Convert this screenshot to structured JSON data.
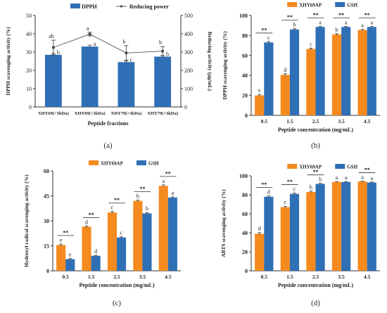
{
  "chart_data": [
    {
      "type": "bar",
      "panel_label": "(a)",
      "xlabel": "Peptide fractions",
      "ylabel": "DPPH scavenging activity (%)",
      "y2label": "Reducing activity (μg/mL)",
      "ylim": [
        0,
        50
      ],
      "yticks": [
        0,
        10,
        20,
        30,
        40,
        50
      ],
      "y2lim": [
        0,
        500
      ],
      "y2ticks": [
        0,
        100,
        200,
        300,
        400,
        500
      ],
      "categories": [
        "XHY69(>3kDa)",
        "XHY69(<3kDa)",
        "XHY79(>3kDa)",
        "XHY79(<3kDa)"
      ],
      "legend_placement": "top",
      "colors": {
        "bar": "#2f6fb5",
        "line": "#555555"
      },
      "series": [
        {
          "name": "DPPH",
          "kind": "bar",
          "values": [
            28.5,
            33,
            24.5,
            27.5
          ],
          "errors": [
            0.8,
            0.8,
            0.6,
            0.6
          ],
          "letters": [
            "b",
            "a",
            "c",
            "b"
          ]
        },
        {
          "name": "Reducing power",
          "kind": "line",
          "axis": "right",
          "values": [
            325,
            398,
            295,
            305
          ],
          "errors": [
            40,
            10,
            40,
            25
          ],
          "letters": [
            "ab",
            "a",
            "b",
            "b"
          ]
        }
      ]
    },
    {
      "type": "bar",
      "panel_label": "(b)",
      "xlabel": "Peptide concentration (mg/mL)",
      "ylabel": "DPPH scavenging activity (%)",
      "ylim": [
        0,
        100
      ],
      "yticks": [
        0,
        20,
        40,
        60,
        80,
        100
      ],
      "categories": [
        "0.5",
        "1.5",
        "2.5",
        "3.5",
        "4.5"
      ],
      "legend_placement": "top",
      "colors": {
        "s1": "#f58a1f",
        "s2": "#2f6fb5"
      },
      "series": [
        {
          "name": "XHY69AP",
          "values": [
            20,
            40.5,
            66.5,
            81,
            85.5
          ],
          "errors": [
            1,
            1.2,
            0.8,
            0.8,
            0.6
          ],
          "letters": [
            "e",
            "d",
            "c",
            "b",
            "a"
          ]
        },
        {
          "name": "GSH",
          "values": [
            73,
            86,
            88.5,
            88.5,
            88.5
          ],
          "errors": [
            1,
            0.8,
            0.5,
            0.5,
            0.5
          ],
          "letters": [
            "c",
            "b",
            "a",
            "a",
            "a"
          ]
        }
      ],
      "significance": [
        "**",
        "**",
        "**",
        "**",
        "**"
      ]
    },
    {
      "type": "bar",
      "panel_label": "(c)",
      "xlabel": "Peptide concentration (mg/mL)",
      "ylabel": "Hydroxyl radical scavenging activity (%)",
      "ylim": [
        0,
        60
      ],
      "yticks": [
        0,
        15,
        30,
        45,
        60
      ],
      "categories": [
        "0.5",
        "1.5",
        "2.5",
        "3.5",
        "4.5"
      ],
      "legend_placement": "top",
      "colors": {
        "s1": "#f58a1f",
        "s2": "#2f6fb5"
      },
      "series": [
        {
          "name": "XHY69AP",
          "values": [
            15.5,
            26.5,
            35,
            42,
            51
          ],
          "errors": [
            0.6,
            0.4,
            0.6,
            0.4,
            0.6
          ],
          "letters": [
            "e",
            "d",
            "c",
            "b",
            "a"
          ]
        },
        {
          "name": "GSH",
          "values": [
            7,
            9,
            20,
            34.5,
            44
          ],
          "errors": [
            0.4,
            0.3,
            0.4,
            0.5,
            0.4
          ],
          "letters": [
            "e",
            "d",
            "c",
            "b",
            "a"
          ]
        }
      ],
      "significance": [
        "**",
        "**",
        "**",
        "**",
        "**"
      ]
    },
    {
      "type": "bar",
      "panel_label": "(d)",
      "xlabel": "Peptide concentration (mg/mL)",
      "ylabel": "ABTS scavenging activity (%)",
      "ylim": [
        0,
        100
      ],
      "yticks": [
        0,
        20,
        40,
        60,
        80,
        100
      ],
      "categories": [
        "0.5",
        "1.5",
        "2.5",
        "3.5",
        "4.5"
      ],
      "legend_placement": "top",
      "colors": {
        "s1": "#f58a1f",
        "s2": "#2f6fb5"
      },
      "series": [
        {
          "name": "XHY69AP",
          "values": [
            39,
            67,
            83,
            93.5,
            94
          ],
          "errors": [
            1.2,
            1,
            1,
            0.5,
            0.5
          ],
          "letters": [
            "d",
            "c",
            "b",
            "a",
            "a"
          ]
        },
        {
          "name": "GSH",
          "values": [
            78,
            81,
            91.5,
            93.5,
            93
          ],
          "errors": [
            0.8,
            0.8,
            0.6,
            0.5,
            0.5
          ],
          "letters": [
            "d",
            "c",
            "b",
            "a",
            "a"
          ]
        }
      ],
      "significance": [
        "**",
        "**",
        "**",
        "",
        "**"
      ]
    }
  ]
}
